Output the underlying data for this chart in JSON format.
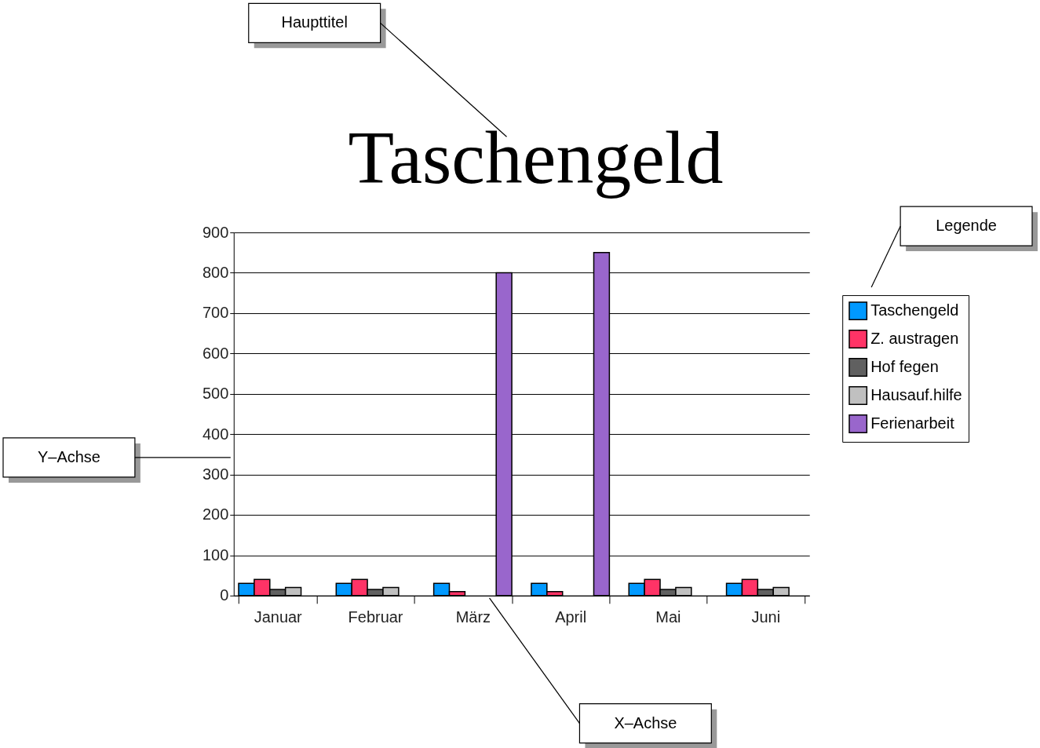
{
  "chart_data": {
    "type": "bar",
    "title": "Taschengeld",
    "categories": [
      "Januar",
      "Februar",
      "März",
      "April",
      "Mai",
      "Juni"
    ],
    "series": [
      {
        "name": "Taschengeld",
        "color": "#0099ff",
        "values": [
          30,
          30,
          30,
          30,
          30,
          30
        ]
      },
      {
        "name": "Z. austragen",
        "color": "#ff3366",
        "values": [
          40,
          40,
          10,
          10,
          40,
          40
        ]
      },
      {
        "name": "Hof fegen",
        "color": "#606060",
        "values": [
          15,
          15,
          null,
          null,
          15,
          15
        ]
      },
      {
        "name": "Hausauf.hilfe",
        "color": "#c0c0c0",
        "values": [
          20,
          20,
          null,
          null,
          20,
          20
        ]
      },
      {
        "name": "Ferienarbeit",
        "color": "#9966cc",
        "values": [
          null,
          null,
          800,
          850,
          null,
          null
        ]
      }
    ],
    "ylim": [
      0,
      900
    ],
    "yticks": [
      0,
      100,
      200,
      300,
      400,
      500,
      600,
      700,
      800,
      900
    ],
    "grid": "y",
    "legend": "right",
    "annotations": [
      "Haupttitel",
      "Legende",
      "Y–Achse",
      "X–Achse"
    ]
  }
}
